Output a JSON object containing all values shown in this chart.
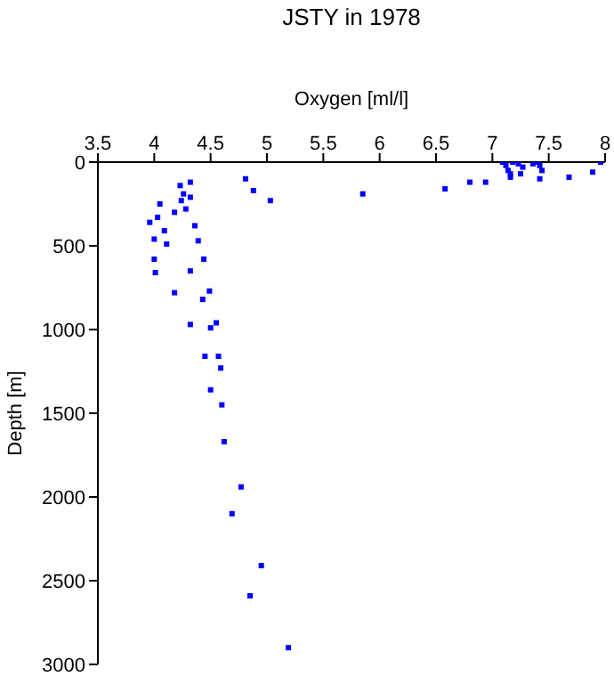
{
  "chart_data": {
    "type": "scatter",
    "title": "JSTY in 1978",
    "xlabel": "Oxygen [ml/l]",
    "ylabel": "Depth [m]",
    "xlim": [
      3.5,
      8
    ],
    "xticks": [
      3.5,
      4,
      4.5,
      5,
      5.5,
      6,
      6.5,
      7,
      7.5,
      8
    ],
    "ylim": [
      3000,
      0
    ],
    "yticks": [
      0,
      500,
      1000,
      1500,
      2000,
      2500,
      3000
    ],
    "grid": false,
    "legend": false,
    "marker": "square",
    "series": [
      {
        "color": "#0000ff",
        "x": [
          4.81,
          4.88,
          5.03,
          4.32,
          4.23,
          4.26,
          4.32,
          4.24,
          4.05,
          4.28,
          4.18,
          4.03,
          3.96,
          4.36,
          4.09,
          4.39,
          4.0,
          4.11,
          4.44,
          4.0,
          4.01,
          4.32,
          4.49,
          4.18,
          4.43,
          4.55,
          4.32,
          4.5,
          4.57,
          4.45,
          4.59,
          4.5,
          4.6,
          4.62,
          4.77,
          4.69,
          4.95,
          4.85,
          5.19,
          5.85,
          6.58,
          6.8,
          6.94,
          7.09,
          7.12,
          7.14,
          7.18,
          7.16,
          7.16,
          7.23,
          7.25,
          7.27,
          7.36,
          7.4,
          7.42,
          7.44,
          7.42,
          7.68,
          7.89,
          7.96
        ],
        "values": [
          100,
          170,
          230,
          120,
          140,
          190,
          210,
          230,
          250,
          280,
          300,
          330,
          360,
          380,
          410,
          470,
          460,
          490,
          580,
          580,
          660,
          650,
          770,
          780,
          820,
          960,
          970,
          990,
          1160,
          1160,
          1230,
          1360,
          1450,
          1670,
          1940,
          2100,
          2410,
          2590,
          2900,
          190,
          160,
          120,
          120,
          0,
          20,
          50,
          0,
          70,
          90,
          10,
          70,
          30,
          10,
          0,
          20,
          50,
          100,
          90,
          60,
          0
        ]
      }
    ]
  }
}
